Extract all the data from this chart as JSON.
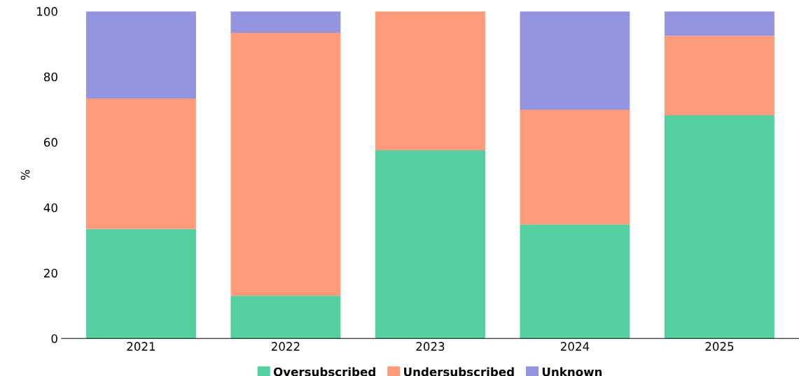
{
  "chart_data": {
    "type": "bar",
    "stacked": true,
    "ylabel": "%",
    "categories": [
      "2021",
      "2022",
      "2023",
      "2024",
      "2025"
    ],
    "series": [
      {
        "name": "Oversubscribed",
        "color": "#55d1a1",
        "values": [
          33.5,
          13.0,
          57.5,
          34.8,
          68.2
        ]
      },
      {
        "name": "Undersubscribed",
        "color": "#ff9b7a",
        "values": [
          39.8,
          80.4,
          42.5,
          35.1,
          24.3
        ]
      },
      {
        "name": "Unknown",
        "color": "#9494df",
        "values": [
          26.7,
          6.6,
          0,
          30.1,
          7.5
        ]
      }
    ],
    "ylim": [
      0,
      100
    ],
    "yticks": [
      0,
      20,
      40,
      60,
      80,
      100
    ],
    "grid": false,
    "legend": "bottom"
  }
}
